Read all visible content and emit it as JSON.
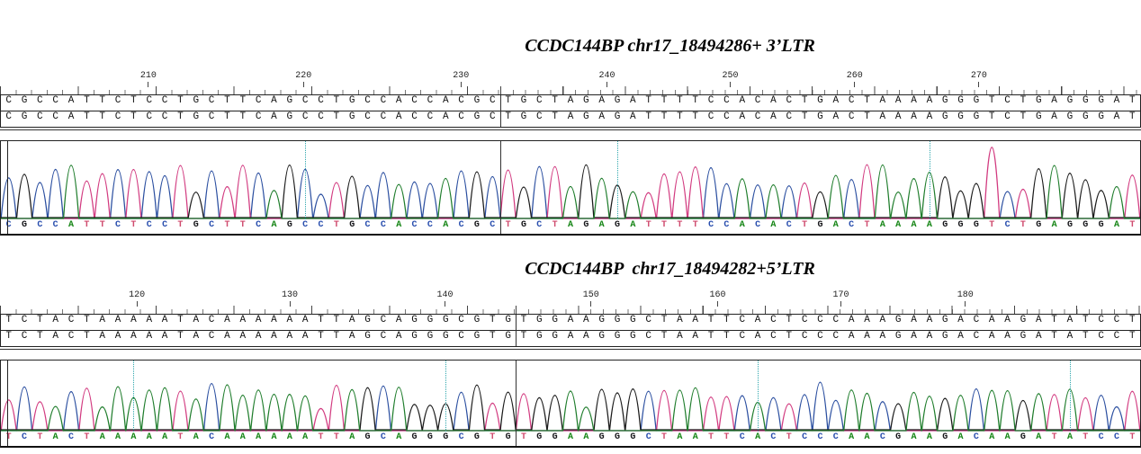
{
  "figure": {
    "kind": "sanger-trace-alignment",
    "panel_count": 2
  },
  "colors": {
    "base_letters": {
      "A": "#158515",
      "C": "#2a4fae",
      "G": "#16161a",
      "T": "#cf4b6e"
    },
    "traces": {
      "A": "#1f7d2c",
      "C": "#2b4fa0",
      "G": "#1b1b1b",
      "T": "#d23b80"
    },
    "position_marker": "#2fa7ad",
    "ruler_text": "#222222",
    "sequence_text": "#111111",
    "box_border": "#222222"
  },
  "panels": [
    {
      "title": "CCDC144BP chr17_18494286+ 3’LTR",
      "ruler_labels": [
        {
          "text": "210",
          "pct": 13.0
        },
        {
          "text": "220",
          "pct": 26.6
        },
        {
          "text": "230",
          "pct": 40.4
        },
        {
          "text": "240",
          "pct": 53.2
        },
        {
          "text": "250",
          "pct": 64.0
        },
        {
          "text": "260",
          "pct": 74.9
        },
        {
          "text": "270",
          "pct": 85.8
        }
      ],
      "tick_period_left": 17.3,
      "tick_period_right": 13.85,
      "reference_row": "CGCCATTCTCCTGCTTCAGCCTGCCACCACGCTGCTAGAGATTTTCCACACTGACTAAAAGGGTCTGAGGGAT",
      "sample_row": "CGCCATTCTCCTGCTTCAGCCTGCCACCACGCTGCTAGAGATTTTCCACACTGACTAAAAGGGTCTGAGGGAT",
      "basecall_row": "CGCCATTCTCCTGCTTCAGCCTGCCACCACGCTGCTAGAGATTTTCCACACTGACTAAAAGGGTCTGAGGGAT",
      "total_columns": 73,
      "divider_after_column": 32,
      "marker_pcts": [
        26.71,
        54.11,
        81.51
      ],
      "trace_seed": 5,
      "tall_peaks": {
        "3": 0.62,
        "63": 0.9
      }
    },
    {
      "title": "CCDC144BP  chr17_18494282+5’LTR",
      "ruler_labels": [
        {
          "text": "120",
          "pct": 12.0
        },
        {
          "text": "130",
          "pct": 25.4
        },
        {
          "text": "140",
          "pct": 39.0
        },
        {
          "text": "150",
          "pct": 51.8
        },
        {
          "text": "160",
          "pct": 62.9
        },
        {
          "text": "170",
          "pct": 73.7
        },
        {
          "text": "180",
          "pct": 84.6
        }
      ],
      "tick_period_left": 17.3,
      "tick_period_right": 13.85,
      "reference_row": "TCTACTAAAAATACAAAAAATTAGCAGGGCGTGTGGAAGGGCTAATTCACTCCCAAAGAAGACAAGATATCCT",
      "sample_row": "TCTACTAAAAATACAAAAAATTAGCAGGGCGTGTGGAAGGGCTAATTCACTCCCAAAGAAGACAAGATATCCT",
      "basecall_row": "TCTACTAAAAATACAAAAAATTAGCAGGGCGTGTGGAAGGGCTAATTCACTCCCAACGAAGACAAGATATCCT",
      "total_columns": 73,
      "divider_after_column": 33,
      "marker_pcts": [
        11.64,
        39.04,
        66.44,
        93.84
      ],
      "trace_seed": 11,
      "tall_peaks": {
        "24": 0.62,
        "62": 0.58
      }
    }
  ],
  "chart_data": [
    {
      "type": "line",
      "subtype": "sanger_chromatogram",
      "title": "CCDC144BP chr17_18494286+ 3’LTR",
      "x_ticks": [
        210,
        220,
        230,
        240,
        250,
        260,
        270
      ],
      "rows": {
        "reference": "CGCCATTCTCCTGCTTCAGCCTGCCACCACGCTGCTAGAGATTTTCCACACTGACTAAAAGGGTCTGAGGGAT",
        "sample": "CGCCATTCTCCTGCTTCAGCCTGCCACCACGCTGCTAGAGATTTTCCACACTGACTAAAAGGGTCTGAGGGAT",
        "basecalls": "CGCCATTCTCCTGCTTCAGCCTGCCACCACGCTGCTAGAGATTTTCCACACTGACTAAAAGGGTCTGAGGGAT"
      },
      "segment_break_after_column": 32,
      "channel_colors": {
        "A": "green",
        "C": "blue",
        "G": "black",
        "T": "magenta"
      },
      "legend_position": "none",
      "grid": false
    },
    {
      "type": "line",
      "subtype": "sanger_chromatogram",
      "title": "CCDC144BP  chr17_18494282+5’LTR",
      "x_ticks": [
        120,
        130,
        140,
        150,
        160,
        170,
        180
      ],
      "rows": {
        "reference": "TCTACTAAAAATACAAAAAATTAGCAGGGCGTGTGGAAGGGCTAATTCACTCCCAAAGAAGACAAGATATCCT",
        "sample": "TCTACTAAAAATACAAAAAATTAGCAGGGCGTGTGGAAGGGCTAATTCACTCCCAAAGAAGACAAGATATCCT",
        "basecalls": "TCTACTAAAAATACAAAAAATTAGCAGGGCGTGTGGAAGGGCTAATTCACTCCCAACGAAGACAAGATATCCT"
      },
      "segment_break_after_column": 33,
      "variant": {
        "column": 57,
        "reference_base": "A",
        "called_base": "C"
      },
      "channel_colors": {
        "A": "green",
        "C": "blue",
        "G": "black",
        "T": "magenta"
      },
      "legend_position": "none",
      "grid": false
    }
  ]
}
